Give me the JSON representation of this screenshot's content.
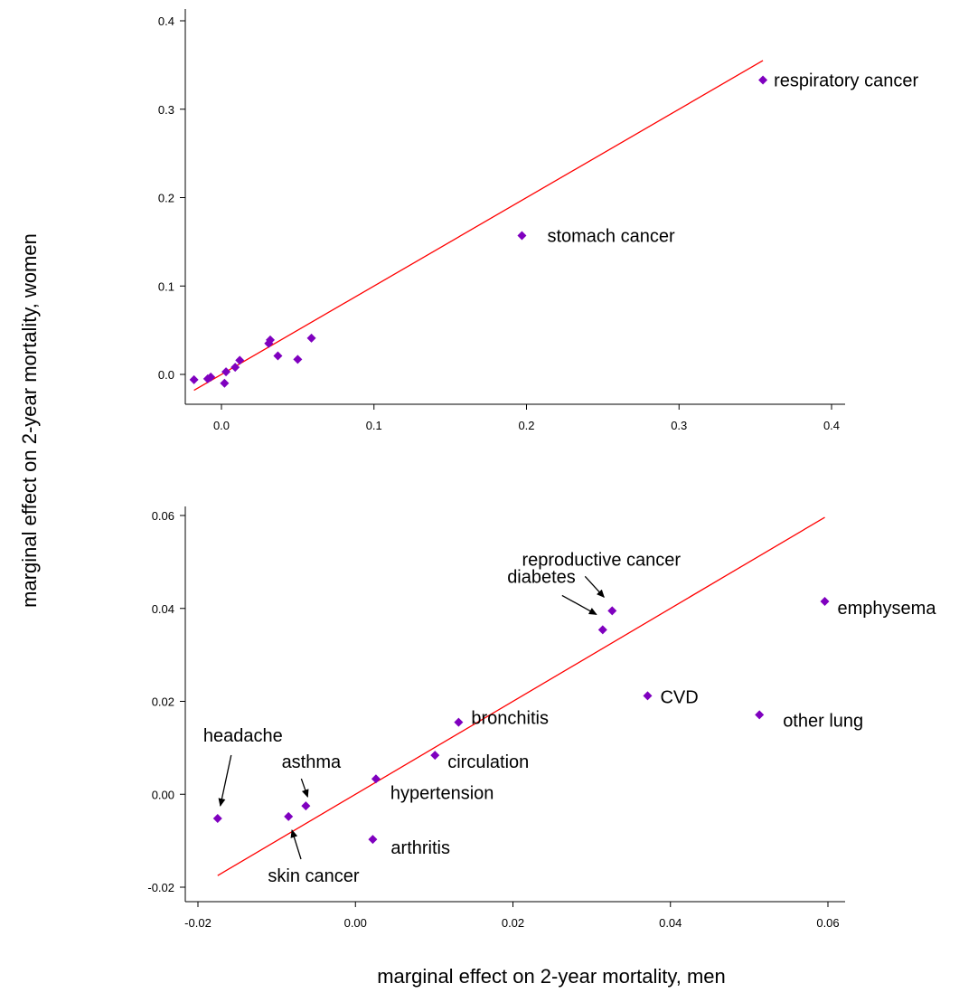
{
  "chart_data": [
    {
      "type": "scatter",
      "panel": "top",
      "xlim": [
        -0.02,
        0.4
      ],
      "ylim": [
        -0.03,
        0.4
      ],
      "x_ticks": [
        0.0,
        0.1,
        0.2,
        0.3,
        0.4
      ],
      "x_tick_labels": [
        "0.0",
        "0.1",
        "0.2",
        "0.3",
        "0.4"
      ],
      "y_ticks": [
        0.0,
        0.1,
        0.2,
        0.3,
        0.4
      ],
      "y_tick_labels": [
        "0.0",
        "0.1",
        "0.2",
        "0.3",
        "0.4"
      ],
      "points": [
        {
          "x": 0.355,
          "y": 0.333,
          "label": "respiratory cancer"
        },
        {
          "x": 0.197,
          "y": 0.157,
          "label": "stomach cancer"
        },
        {
          "x": -0.018,
          "y": -0.006
        },
        {
          "x": -0.009,
          "y": -0.005
        },
        {
          "x": -0.007,
          "y": -0.003
        },
        {
          "x": 0.002,
          "y": -0.01
        },
        {
          "x": 0.003,
          "y": 0.003
        },
        {
          "x": 0.009,
          "y": 0.008
        },
        {
          "x": 0.012,
          "y": 0.016
        },
        {
          "x": 0.031,
          "y": 0.035
        },
        {
          "x": 0.032,
          "y": 0.039
        },
        {
          "x": 0.037,
          "y": 0.021
        },
        {
          "x": 0.05,
          "y": 0.017
        },
        {
          "x": 0.059,
          "y": 0.041
        }
      ],
      "reference_line": {
        "x": [
          -0.018,
          0.355
        ],
        "y": [
          -0.018,
          0.355
        ],
        "color": "#ff0000"
      },
      "marker_color": "#7f00bf"
    },
    {
      "type": "scatter",
      "panel": "bottom",
      "xlim": [
        -0.02,
        0.062
      ],
      "ylim": [
        -0.02,
        0.062
      ],
      "x_ticks": [
        -0.02,
        0.0,
        0.02,
        0.04,
        0.06
      ],
      "x_tick_labels": [
        "-0.02",
        "0.00",
        "0.02",
        "0.04",
        "0.06"
      ],
      "y_ticks": [
        -0.02,
        0.0,
        0.02,
        0.04,
        0.06
      ],
      "y_tick_labels": [
        "-0.02",
        "0.00",
        "0.02",
        "0.04",
        "0.06"
      ],
      "points": [
        {
          "x": -0.0175,
          "y": -0.0052,
          "label": "headache"
        },
        {
          "x": -0.0085,
          "y": -0.0048
        },
        {
          "x": -0.0063,
          "y": -0.0025,
          "label": "asthma"
        },
        {
          "x": 0.0022,
          "y": -0.0097,
          "label": "arthritis"
        },
        {
          "x": 0.0026,
          "y": 0.0033,
          "label": "hypertension"
        },
        {
          "x": 0.0101,
          "y": 0.0084,
          "label": "circulation"
        },
        {
          "x": 0.0131,
          "y": 0.0155,
          "label": "bronchitis"
        },
        {
          "x": 0.0314,
          "y": 0.0354,
          "label": "diabetes"
        },
        {
          "x": 0.0326,
          "y": 0.0395,
          "label": "reproductive cancer"
        },
        {
          "x": 0.0371,
          "y": 0.0212,
          "label": "CVD"
        },
        {
          "x": 0.0513,
          "y": 0.0171,
          "label": "other lung"
        },
        {
          "x": 0.0596,
          "y": 0.0415,
          "label": "emphysema"
        }
      ],
      "annotations": [
        {
          "text": "skin cancer"
        }
      ],
      "reference_line": {
        "x": [
          -0.0175,
          0.0596
        ],
        "y": [
          -0.0175,
          0.0596
        ],
        "color": "#ff0000"
      },
      "marker_color": "#7f00bf"
    }
  ],
  "xlabel": "marginal effect on 2-year mortality, men",
  "ylabel": "marginal effect on 2-year mortality, women"
}
